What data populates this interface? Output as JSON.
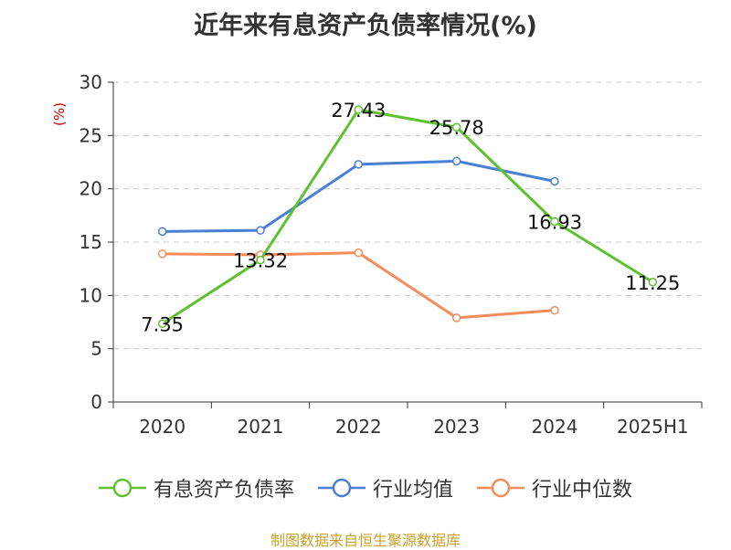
{
  "title": "近年来有息资产负债率情况(%)",
  "source": "制图数据来自恒生聚源数据库",
  "chart_data": {
    "type": "line",
    "title": "近年来有息资产负债率情况(%)",
    "ylabel": "(%)",
    "categories": [
      "2020",
      "2021",
      "2022",
      "2023",
      "2024",
      "2025H1"
    ],
    "y_ticks": [
      "0",
      "5",
      "10",
      "15",
      "20",
      "25",
      "30"
    ],
    "ylim": [
      0,
      30
    ],
    "grid": "horizontal-dashed",
    "legend_position": "bottom",
    "series": [
      {
        "name": "有息资产负债率",
        "color": "#5ec12f",
        "values": [
          7.35,
          13.32,
          27.43,
          25.78,
          16.93,
          11.25
        ],
        "labels": [
          "7.35",
          "13.32",
          "27.43",
          "25.78",
          "16.93",
          "11.25"
        ]
      },
      {
        "name": "行业均值",
        "color": "#4a7fd6",
        "values": [
          16.0,
          16.1,
          22.3,
          22.6,
          20.7,
          null
        ]
      },
      {
        "name": "行业中位数",
        "color": "#f58c5a",
        "values": [
          13.9,
          13.8,
          14.0,
          7.9,
          8.6,
          null
        ]
      }
    ]
  }
}
